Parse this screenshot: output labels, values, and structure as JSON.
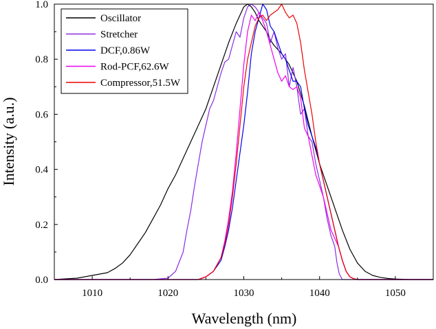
{
  "chart_data": {
    "type": "line",
    "title": "",
    "xlabel": "Wavelength (nm)",
    "ylabel": "Intensity (a.u.)",
    "xlim": [
      1005,
      1055
    ],
    "ylim": [
      0,
      1.0
    ],
    "xticks": [
      1010,
      1020,
      1030,
      1040,
      1050
    ],
    "yticks": [
      0.0,
      0.2,
      0.4,
      0.6,
      0.8,
      1.0
    ],
    "x_tick_labels": [
      "1010",
      "1020",
      "1030",
      "1040",
      "1050"
    ],
    "y_tick_labels": [
      "0.0",
      "0.2",
      "0.4",
      "0.6",
      "0.8",
      "1.0"
    ],
    "legend_position": "top-left",
    "grid": false,
    "series": [
      {
        "name": "Oscillator",
        "color": "#000000",
        "x": [
          1005,
          1008,
          1010,
          1011,
          1012,
          1013,
          1014,
          1015,
          1016,
          1017,
          1018,
          1019,
          1020,
          1021,
          1022,
          1023,
          1024,
          1025,
          1026,
          1027,
          1028,
          1029,
          1029.5,
          1030,
          1030.5,
          1031,
          1031.5,
          1032,
          1032.5,
          1033,
          1033.5,
          1034,
          1035,
          1036,
          1037,
          1038,
          1039,
          1040,
          1041,
          1042,
          1043,
          1044,
          1045,
          1046,
          1047,
          1048,
          1049,
          1050,
          1052,
          1055
        ],
        "y": [
          0.0,
          0.005,
          0.015,
          0.02,
          0.025,
          0.04,
          0.06,
          0.09,
          0.13,
          0.17,
          0.22,
          0.27,
          0.33,
          0.38,
          0.44,
          0.5,
          0.56,
          0.62,
          0.7,
          0.78,
          0.86,
          0.93,
          0.96,
          0.99,
          1.0,
          0.99,
          0.97,
          0.94,
          0.92,
          0.9,
          0.87,
          0.85,
          0.82,
          0.78,
          0.72,
          0.63,
          0.52,
          0.42,
          0.34,
          0.26,
          0.18,
          0.11,
          0.06,
          0.03,
          0.015,
          0.008,
          0.004,
          0.002,
          0.0,
          0.0
        ]
      },
      {
        "name": "Stretcher",
        "color": "#8A2BE2",
        "x": [
          1005,
          1018,
          1020,
          1021,
          1022,
          1022.5,
          1023,
          1023.5,
          1024,
          1024.5,
          1025,
          1025.5,
          1026,
          1026.5,
          1027,
          1027.5,
          1028,
          1028.5,
          1029,
          1029.5,
          1030,
          1030.5,
          1031,
          1031.5,
          1032,
          1032.5,
          1033,
          1033.5,
          1034,
          1034.5,
          1035,
          1035.5,
          1036,
          1036.5,
          1037,
          1037.5,
          1038,
          1038.5,
          1039,
          1039.5,
          1040,
          1040.5,
          1041,
          1041.5,
          1042,
          1042.3,
          1042.6,
          1043,
          1055
        ],
        "y": [
          0.0,
          0.0,
          0.005,
          0.03,
          0.1,
          0.18,
          0.25,
          0.34,
          0.42,
          0.5,
          0.56,
          0.62,
          0.65,
          0.7,
          0.75,
          0.79,
          0.8,
          0.85,
          0.9,
          0.88,
          0.95,
          0.99,
          1.0,
          0.99,
          0.97,
          0.95,
          0.93,
          0.86,
          0.9,
          0.84,
          0.8,
          0.82,
          0.7,
          0.77,
          0.7,
          0.6,
          0.62,
          0.52,
          0.5,
          0.42,
          0.36,
          0.3,
          0.22,
          0.16,
          0.12,
          0.06,
          0.02,
          0.0,
          0.0
        ]
      },
      {
        "name": "DCF,0.86W",
        "color": "#0000EE",
        "x": [
          1005,
          1024,
          1025,
          1026,
          1027,
          1027.5,
          1028,
          1028.5,
          1029,
          1029.5,
          1030,
          1030.5,
          1031,
          1031.5,
          1032,
          1032.5,
          1033,
          1033.5,
          1034,
          1034.5,
          1035,
          1035.5,
          1036,
          1036.5,
          1037,
          1037.5,
          1038,
          1038.5,
          1039,
          1039.5,
          1040,
          1040.5,
          1041,
          1041.5,
          1042,
          1042.5,
          1043,
          1043.5,
          1044,
          1044.5,
          1045,
          1055
        ],
        "y": [
          0.0,
          0.0,
          0.01,
          0.03,
          0.07,
          0.12,
          0.18,
          0.26,
          0.36,
          0.46,
          0.56,
          0.68,
          0.82,
          0.9,
          0.95,
          1.0,
          0.98,
          0.92,
          0.9,
          0.86,
          0.82,
          0.8,
          0.76,
          0.72,
          0.72,
          0.7,
          0.62,
          0.56,
          0.52,
          0.48,
          0.42,
          0.36,
          0.3,
          0.24,
          0.18,
          0.12,
          0.07,
          0.03,
          0.01,
          0.003,
          0.0,
          0.0
        ]
      },
      {
        "name": "Rod-PCF,62.6W",
        "color": "#EE00EE",
        "x": [
          1005,
          1024,
          1025,
          1026,
          1027,
          1027.5,
          1028,
          1028.5,
          1029,
          1029.5,
          1030,
          1030.5,
          1031,
          1031.5,
          1032,
          1032.5,
          1033,
          1033.5,
          1034,
          1034.5,
          1035,
          1035.5,
          1036,
          1036.5,
          1037,
          1037.5,
          1038,
          1038.5,
          1039,
          1039.5,
          1040,
          1040.5,
          1041,
          1041.5,
          1042,
          1042.5,
          1043,
          1043.5,
          1044,
          1044.5,
          1045,
          1055
        ],
        "y": [
          0.0,
          0.0,
          0.01,
          0.03,
          0.08,
          0.14,
          0.22,
          0.32,
          0.46,
          0.62,
          0.78,
          0.9,
          0.96,
          0.94,
          0.97,
          0.94,
          0.9,
          0.85,
          0.8,
          0.75,
          0.72,
          0.74,
          0.7,
          0.69,
          0.7,
          0.66,
          0.55,
          0.52,
          0.45,
          0.38,
          0.34,
          0.3,
          0.24,
          0.18,
          0.15,
          0.12,
          0.07,
          0.03,
          0.01,
          0.003,
          0.0,
          0.0
        ]
      },
      {
        "name": "Compressor,51.5W",
        "color": "#EE0000",
        "x": [
          1005,
          1024,
          1025,
          1026,
          1027,
          1027.5,
          1028,
          1028.5,
          1029,
          1029.5,
          1030,
          1030.5,
          1031,
          1031.5,
          1032,
          1032.5,
          1033,
          1033.5,
          1034,
          1034.5,
          1035,
          1035.5,
          1036,
          1036.5,
          1037,
          1037.5,
          1038,
          1038.5,
          1039,
          1039.5,
          1040,
          1040.5,
          1041,
          1041.5,
          1042,
          1042.5,
          1043,
          1043.5,
          1044,
          1044.5,
          1045,
          1055
        ],
        "y": [
          0.0,
          0.0,
          0.01,
          0.03,
          0.08,
          0.13,
          0.2,
          0.3,
          0.42,
          0.56,
          0.7,
          0.8,
          0.86,
          0.92,
          0.95,
          0.96,
          0.94,
          0.96,
          0.97,
          0.98,
          1.0,
          0.97,
          0.95,
          0.96,
          0.93,
          0.86,
          0.76,
          0.68,
          0.6,
          0.5,
          0.42,
          0.36,
          0.3,
          0.24,
          0.18,
          0.12,
          0.07,
          0.03,
          0.01,
          0.003,
          0.0,
          0.0
        ]
      }
    ]
  }
}
